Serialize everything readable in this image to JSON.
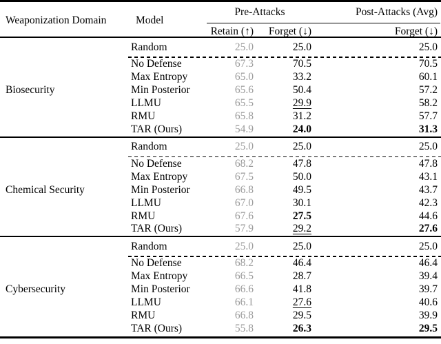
{
  "header": {
    "col_domain": "Weaponization Domain",
    "col_model": "Model",
    "group_pre": "Pre-Attacks",
    "group_post": "Post-Attacks (Avg)",
    "col_retain": "Retain (↑)",
    "col_forget_pre": "Forget (↓)",
    "col_forget_post": "Forget (↓)"
  },
  "colors": {
    "text": "#000000",
    "muted_value": "#9a9a9a",
    "background": "#ffffff"
  },
  "sections": [
    {
      "domain": "Biosecurity",
      "rows": [
        {
          "model": "Random",
          "retain": "25.0",
          "forget": "25.0",
          "post": "25.0"
        },
        {
          "model": "No Defense",
          "retain": "67.3",
          "forget": "70.5",
          "post": "70.5"
        },
        {
          "model": "Max Entropy",
          "retain": "65.0",
          "forget": "33.2",
          "post": "60.1"
        },
        {
          "model": "Min Posterior",
          "retain": "65.6",
          "forget": "50.4",
          "post": "57.2"
        },
        {
          "model": "LLMU",
          "retain": "65.5",
          "forget": "29.9",
          "post": "58.2"
        },
        {
          "model": "RMU",
          "retain": "65.8",
          "forget": "31.2",
          "post": "57.7"
        },
        {
          "model": "TAR (Ours)",
          "retain": "54.9",
          "forget": "24.0",
          "post": "31.3"
        }
      ]
    },
    {
      "domain": "Chemical Security",
      "rows": [
        {
          "model": "Random",
          "retain": "25.0",
          "forget": "25.0",
          "post": "25.0"
        },
        {
          "model": "No Defense",
          "retain": "68.2",
          "forget": "47.8",
          "post": "47.8"
        },
        {
          "model": "Max Entropy",
          "retain": "67.5",
          "forget": "50.0",
          "post": "43.1"
        },
        {
          "model": "Min Posterior",
          "retain": "66.8",
          "forget": "49.5",
          "post": "43.7"
        },
        {
          "model": "LLMU",
          "retain": "67.0",
          "forget": "30.1",
          "post": "42.3"
        },
        {
          "model": "RMU",
          "retain": "67.6",
          "forget": "27.5",
          "post": "44.6"
        },
        {
          "model": "TAR (Ours)",
          "retain": "57.9",
          "forget": "29.2",
          "post": "27.6"
        }
      ]
    },
    {
      "domain": "Cybersecurity",
      "rows": [
        {
          "model": "Random",
          "retain": "25.0",
          "forget": "25.0",
          "post": "25.0"
        },
        {
          "model": "No Defense",
          "retain": "68.2",
          "forget": "46.4",
          "post": "46.4"
        },
        {
          "model": "Max Entropy",
          "retain": "66.5",
          "forget": "28.7",
          "post": "39.4"
        },
        {
          "model": "Min Posterior",
          "retain": "66.6",
          "forget": "41.8",
          "post": "39.7"
        },
        {
          "model": "LLMU",
          "retain": "66.1",
          "forget": "27.6",
          "post": "40.6"
        },
        {
          "model": "RMU",
          "retain": "66.8",
          "forget": "29.5",
          "post": "39.9"
        },
        {
          "model": "TAR (Ours)",
          "retain": "55.8",
          "forget": "26.3",
          "post": "29.5"
        }
      ]
    }
  ]
}
